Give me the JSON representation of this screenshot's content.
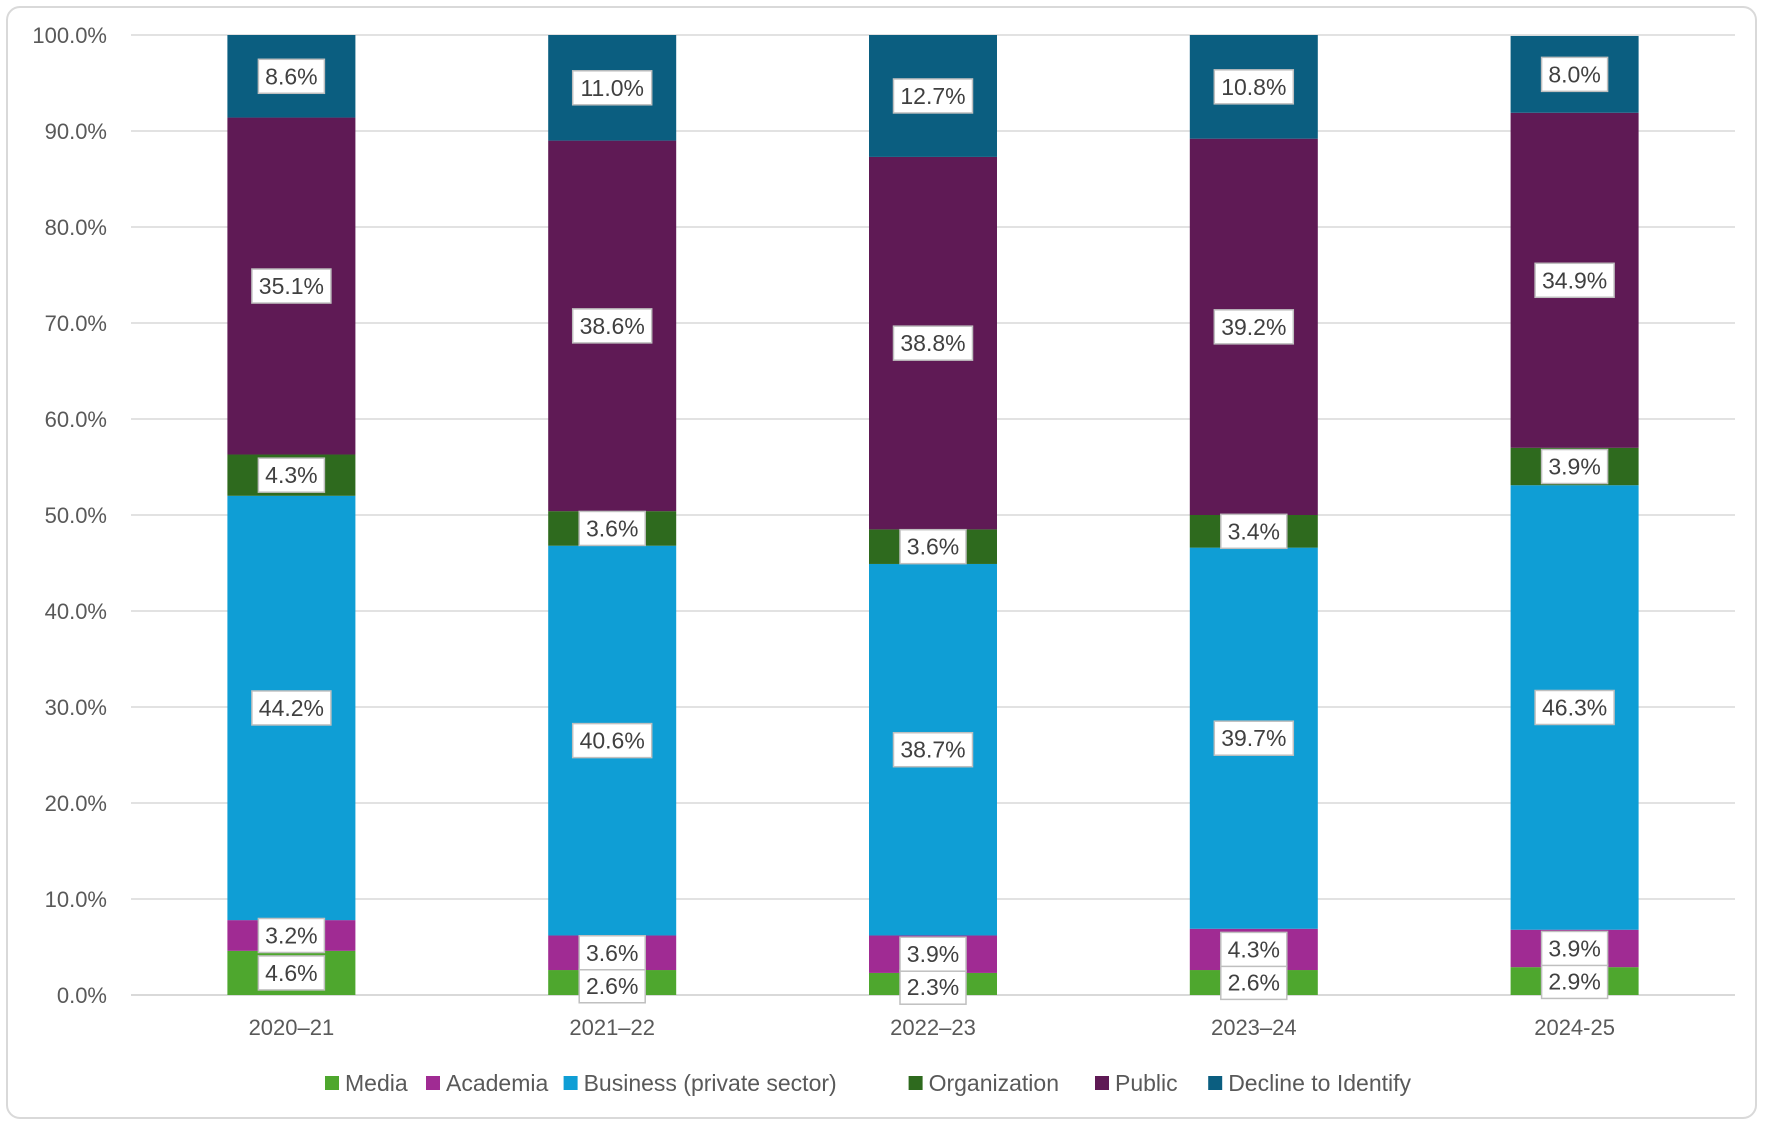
{
  "chart_data": {
    "type": "bar",
    "stacked": "percent",
    "categories": [
      "2020–21",
      "2021–22",
      "2022–23",
      "2023–24",
      "2024-25"
    ],
    "series": [
      {
        "name": "Media",
        "color": "#4EA72E",
        "values": [
          4.6,
          2.6,
          2.3,
          2.6,
          2.9
        ],
        "labels": [
          "4.6%",
          "2.6%",
          "2.3%",
          "2.6%",
          "2.9%"
        ]
      },
      {
        "name": "Academia",
        "color": "#A02B93",
        "values": [
          3.2,
          3.6,
          3.9,
          4.3,
          3.9
        ],
        "labels": [
          "3.2%",
          "3.6%",
          "3.9%",
          "4.3%",
          "3.9%"
        ]
      },
      {
        "name": "Business (private sector)",
        "color": "#0F9ED5",
        "values": [
          44.2,
          40.6,
          38.7,
          39.7,
          46.3
        ],
        "labels": [
          "44.2%",
          "40.6%",
          "38.7%",
          "39.7%",
          "46.3%"
        ]
      },
      {
        "name": "Organization",
        "color": "#2E6A1E",
        "values": [
          4.3,
          3.6,
          3.6,
          3.4,
          3.9
        ],
        "labels": [
          "4.3%",
          "3.6%",
          "3.6%",
          "3.4%",
          "3.9%"
        ]
      },
      {
        "name": "Public",
        "color": "#5F1A55",
        "values": [
          35.1,
          38.6,
          38.8,
          39.2,
          34.9
        ],
        "labels": [
          "35.1%",
          "38.6%",
          "38.8%",
          "39.2%",
          "34.9%"
        ]
      },
      {
        "name": "Decline to Identify",
        "color": "#0B5E80",
        "values": [
          8.6,
          11.0,
          12.7,
          10.8,
          8.0
        ],
        "labels": [
          "8.6%",
          "11.0%",
          "12.7%",
          "10.8%",
          "8.0%"
        ]
      }
    ],
    "yticks": [
      "0.0%",
      "10.0%",
      "20.0%",
      "30.0%",
      "40.0%",
      "50.0%",
      "60.0%",
      "70.0%",
      "80.0%",
      "90.0%",
      "100.0%"
    ],
    "ylim": [
      0,
      100
    ],
    "grid": true,
    "legend": "bottom",
    "title": "",
    "xlabel": "",
    "ylabel": ""
  }
}
